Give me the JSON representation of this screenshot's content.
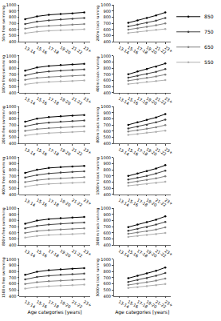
{
  "chart_data": [
    {
      "type": "line",
      "y_label": "50m free swimming",
      "categories": [
        "13-14",
        "15-16",
        "17-18",
        "19-20",
        "21-22",
        "23+"
      ],
      "ylim": [
        400,
        1000
      ],
      "yticks": [
        400,
        500,
        600,
        700,
        800,
        900,
        1000
      ],
      "grid": false,
      "series": [
        {
          "name": "850",
          "color": "#000000",
          "marker": "circle",
          "values": [
            770,
            815,
            840,
            855,
            865,
            880
          ]
        },
        {
          "name": "750",
          "color": "#404040",
          "marker": "circle",
          "values": [
            690,
            730,
            750,
            765,
            775,
            790
          ]
        },
        {
          "name": "650",
          "color": "#808080",
          "marker": "circle",
          "values": [
            615,
            645,
            660,
            670,
            680,
            690
          ]
        },
        {
          "name": "550",
          "color": "#b0b0b0",
          "marker": "circle",
          "values": [
            540,
            565,
            580,
            590,
            595,
            605
          ]
        }
      ]
    },
    {
      "type": "line",
      "y_label": "200m track running",
      "categories": [
        "13-14",
        "15-16",
        "17-18",
        "19-20",
        "21-22",
        "23+"
      ],
      "ylim": [
        400,
        1000
      ],
      "yticks": [
        400,
        500,
        600,
        700,
        800,
        900,
        1000
      ],
      "grid": false,
      "legend": "right",
      "series": [
        {
          "name": "850",
          "color": "#000000",
          "marker": "circle",
          "values": [
            null,
            710,
            750,
            790,
            830,
            880
          ]
        },
        {
          "name": "750",
          "color": "#404040",
          "marker": "circle",
          "values": [
            null,
            650,
            680,
            710,
            745,
            790
          ]
        },
        {
          "name": "650",
          "color": "#808080",
          "marker": "circle",
          "values": [
            null,
            600,
            620,
            645,
            670,
            700
          ]
        },
        {
          "name": "550",
          "color": "#b0b0b0",
          "marker": "circle",
          "values": [
            null,
            545,
            560,
            580,
            595,
            610
          ]
        }
      ]
    },
    {
      "type": "line",
      "y_label": "100m free swimming",
      "categories": [
        "13-14",
        "15-16",
        "17-18",
        "19-20",
        "21-22",
        "23+"
      ],
      "ylim": [
        400,
        1000
      ],
      "yticks": [
        400,
        500,
        600,
        700,
        800,
        900,
        1000
      ],
      "grid": false,
      "series": [
        {
          "name": "850",
          "color": "#000000",
          "marker": "circle",
          "values": [
            760,
            810,
            835,
            850,
            860,
            870
          ]
        },
        {
          "name": "750",
          "color": "#404040",
          "marker": "circle",
          "values": [
            680,
            725,
            745,
            760,
            770,
            780
          ]
        },
        {
          "name": "650",
          "color": "#808080",
          "marker": "circle",
          "values": [
            610,
            640,
            655,
            665,
            675,
            685
          ]
        },
        {
          "name": "550",
          "color": "#b0b0b0",
          "marker": "circle",
          "values": [
            535,
            560,
            575,
            585,
            590,
            600
          ]
        }
      ]
    },
    {
      "type": "line",
      "y_label": "400m track running",
      "categories": [
        "13-14",
        "15-16",
        "17-18",
        "19-20",
        "21-22",
        "23+"
      ],
      "ylim": [
        400,
        1000
      ],
      "yticks": [
        400,
        500,
        600,
        700,
        800,
        900,
        1000
      ],
      "grid": false,
      "series": [
        {
          "name": "850",
          "color": "#000000",
          "marker": "circle",
          "values": [
            null,
            700,
            745,
            785,
            825,
            875
          ]
        },
        {
          "name": "750",
          "color": "#404040",
          "marker": "circle",
          "values": [
            null,
            645,
            675,
            705,
            740,
            785
          ]
        },
        {
          "name": "650",
          "color": "#808080",
          "marker": "circle",
          "values": [
            null,
            595,
            615,
            640,
            665,
            695
          ]
        },
        {
          "name": "550",
          "color": "#b0b0b0",
          "marker": "circle",
          "values": [
            null,
            540,
            555,
            575,
            590,
            605
          ]
        }
      ]
    },
    {
      "type": "line",
      "y_label": "200m free swimming",
      "categories": [
        "13-14",
        "15-16",
        "17-18",
        "19-20",
        "21-22",
        "23+"
      ],
      "ylim": [
        400,
        1000
      ],
      "yticks": [
        400,
        500,
        600,
        700,
        800,
        900,
        1000
      ],
      "grid": false,
      "series": [
        {
          "name": "850",
          "color": "#000000",
          "marker": "circle",
          "values": [
            755,
            805,
            830,
            845,
            855,
            865
          ]
        },
        {
          "name": "750",
          "color": "#404040",
          "marker": "circle",
          "values": [
            680,
            720,
            740,
            755,
            765,
            775
          ]
        },
        {
          "name": "650",
          "color": "#808080",
          "marker": "circle",
          "values": [
            605,
            635,
            650,
            660,
            670,
            680
          ]
        },
        {
          "name": "550",
          "color": "#b0b0b0",
          "marker": "circle",
          "values": [
            530,
            555,
            570,
            580,
            585,
            595
          ]
        }
      ]
    },
    {
      "type": "line",
      "y_label": "800m track running",
      "categories": [
        "13-14",
        "15-16",
        "17-18",
        "19-20",
        "21-22",
        "23+"
      ],
      "ylim": [
        400,
        1000
      ],
      "yticks": [
        400,
        500,
        600,
        700,
        800,
        900,
        1000
      ],
      "grid": false,
      "series": [
        {
          "name": "850",
          "color": "#000000",
          "marker": "circle",
          "values": [
            null,
            705,
            745,
            785,
            825,
            880
          ]
        },
        {
          "name": "750",
          "color": "#404040",
          "marker": "circle",
          "values": [
            null,
            645,
            675,
            705,
            745,
            790
          ]
        },
        {
          "name": "650",
          "color": "#808080",
          "marker": "circle",
          "values": [
            null,
            595,
            615,
            640,
            665,
            700
          ]
        },
        {
          "name": "550",
          "color": "#b0b0b0",
          "marker": "circle",
          "values": [
            null,
            540,
            555,
            575,
            590,
            610
          ]
        }
      ]
    },
    {
      "type": "line",
      "y_label": "400m free swimming",
      "categories": [
        "13-14",
        "15-16",
        "17-18",
        "19-20",
        "21-22",
        "23+"
      ],
      "ylim": [
        400,
        1000
      ],
      "yticks": [
        400,
        500,
        600,
        700,
        800,
        900,
        1000
      ],
      "grid": false,
      "series": [
        {
          "name": "850",
          "color": "#000000",
          "marker": "circle",
          "values": [
            750,
            800,
            830,
            845,
            855,
            865
          ]
        },
        {
          "name": "750",
          "color": "#404040",
          "marker": "circle",
          "values": [
            675,
            715,
            740,
            755,
            765,
            775
          ]
        },
        {
          "name": "650",
          "color": "#808080",
          "marker": "circle",
          "values": [
            600,
            630,
            650,
            660,
            670,
            680
          ]
        },
        {
          "name": "550",
          "color": "#b0b0b0",
          "marker": "circle",
          "values": [
            525,
            555,
            570,
            580,
            585,
            595
          ]
        }
      ]
    },
    {
      "type": "line",
      "y_label": "1500m track running",
      "categories": [
        "13-14",
        "15-16",
        "17-18",
        "19-20",
        "21-22",
        "23+"
      ],
      "ylim": [
        400,
        1000
      ],
      "yticks": [
        400,
        500,
        600,
        700,
        800,
        900,
        1000
      ],
      "grid": false,
      "series": [
        {
          "name": "850",
          "color": "#000000",
          "marker": "circle",
          "values": [
            null,
            700,
            740,
            780,
            820,
            875
          ]
        },
        {
          "name": "750",
          "color": "#404040",
          "marker": "circle",
          "values": [
            null,
            640,
            670,
            700,
            740,
            785
          ]
        },
        {
          "name": "650",
          "color": "#808080",
          "marker": "circle",
          "values": [
            null,
            590,
            610,
            635,
            660,
            695
          ]
        },
        {
          "name": "550",
          "color": "#b0b0b0",
          "marker": "circle",
          "values": [
            null,
            540,
            555,
            570,
            585,
            605
          ]
        }
      ]
    },
    {
      "type": "line",
      "y_label": "800m free swimming",
      "categories": [
        "13-14",
        "15-16",
        "17-18",
        "19-20",
        "21-22",
        "23+"
      ],
      "ylim": [
        400,
        1000
      ],
      "yticks": [
        400,
        500,
        600,
        700,
        800,
        900,
        1000
      ],
      "grid": false,
      "series": [
        {
          "name": "850",
          "color": "#000000",
          "marker": "circle",
          "values": [
            750,
            800,
            825,
            840,
            850,
            860
          ]
        },
        {
          "name": "750",
          "color": "#404040",
          "marker": "circle",
          "values": [
            675,
            715,
            735,
            750,
            760,
            770
          ]
        },
        {
          "name": "650",
          "color": "#808080",
          "marker": "circle",
          "values": [
            600,
            630,
            645,
            655,
            665,
            675
          ]
        },
        {
          "name": "550",
          "color": "#b0b0b0",
          "marker": "circle",
          "values": [
            525,
            550,
            565,
            575,
            580,
            590
          ]
        }
      ]
    },
    {
      "type": "line",
      "y_label": "3000m track running",
      "categories": [
        "13-14",
        "15-16",
        "17-18",
        "19-20",
        "21-22",
        "23+"
      ],
      "ylim": [
        400,
        1000
      ],
      "yticks": [
        400,
        500,
        600,
        700,
        800,
        900,
        1000
      ],
      "grid": false,
      "series": [
        {
          "name": "850",
          "color": "#000000",
          "marker": "circle",
          "values": [
            null,
            695,
            735,
            775,
            815,
            870
          ]
        },
        {
          "name": "750",
          "color": "#404040",
          "marker": "circle",
          "values": [
            null,
            635,
            665,
            695,
            735,
            780
          ]
        },
        {
          "name": "650",
          "color": "#808080",
          "marker": "circle",
          "values": [
            null,
            585,
            605,
            630,
            655,
            690
          ]
        },
        {
          "name": "550",
          "color": "#b0b0b0",
          "marker": "circle",
          "values": [
            null,
            535,
            550,
            565,
            580,
            600
          ]
        }
      ]
    },
    {
      "type": "line",
      "y_label": "1500m free swimming",
      "x_label": "Age categories [years]",
      "categories": [
        "13-14",
        "15-16",
        "17-18",
        "19-20",
        "21-22",
        "23+"
      ],
      "ylim": [
        400,
        1000
      ],
      "yticks": [
        400,
        500,
        600,
        700,
        800,
        900,
        1000
      ],
      "grid": false,
      "series": [
        {
          "name": "850",
          "color": "#000000",
          "marker": "circle",
          "values": [
            745,
            795,
            820,
            835,
            845,
            855
          ]
        },
        {
          "name": "750",
          "color": "#404040",
          "marker": "circle",
          "values": [
            670,
            710,
            730,
            745,
            755,
            765
          ]
        },
        {
          "name": "650",
          "color": "#808080",
          "marker": "circle",
          "values": [
            595,
            625,
            640,
            650,
            660,
            670
          ]
        },
        {
          "name": "550",
          "color": "#b0b0b0",
          "marker": "circle",
          "values": [
            520,
            545,
            560,
            570,
            575,
            585
          ]
        }
      ]
    },
    {
      "type": "line",
      "y_label": "5000m track running",
      "x_label": "Age categories [years]",
      "categories": [
        "13-14",
        "15-16",
        "17-18",
        "19-20",
        "21-22",
        "23+"
      ],
      "ylim": [
        400,
        1000
      ],
      "yticks": [
        400,
        500,
        600,
        700,
        800,
        900,
        1000
      ],
      "grid": false,
      "series": [
        {
          "name": "850",
          "color": "#000000",
          "marker": "circle",
          "values": [
            null,
            690,
            730,
            770,
            810,
            865
          ]
        },
        {
          "name": "750",
          "color": "#404040",
          "marker": "circle",
          "values": [
            null,
            630,
            660,
            690,
            730,
            775
          ]
        },
        {
          "name": "650",
          "color": "#808080",
          "marker": "circle",
          "values": [
            null,
            580,
            600,
            625,
            650,
            685
          ]
        },
        {
          "name": "550",
          "color": "#b0b0b0",
          "marker": "circle",
          "values": [
            null,
            530,
            545,
            560,
            575,
            595
          ]
        }
      ]
    }
  ]
}
